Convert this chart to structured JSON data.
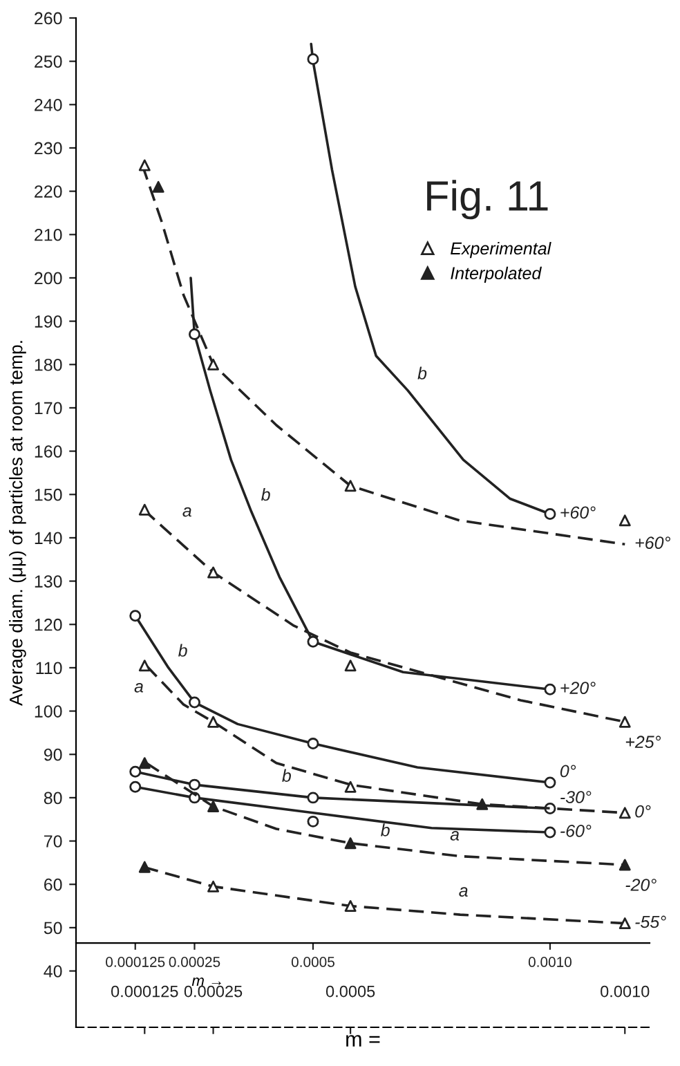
{
  "chart_data": {
    "type": "line",
    "title": "Fig. 11",
    "ylabel": "Average diam. (μμ) of particles at room temp.",
    "xlabel": "m →",
    "x2label": "m =",
    "xlim": [
      0,
      0.00121
    ],
    "xticks": [
      0.000125,
      0.00025,
      0.0005,
      {
        "value": 0.001,
        "label": "0.0010"
      }
    ],
    "x2lim": [
      0,
      0.001045
    ],
    "x2ticks": [
      0.000125,
      0.00025,
      0.0005,
      {
        "value": 0.001,
        "label": "0.0010"
      }
    ],
    "ylim": [
      27,
      260
    ],
    "yticks": [
      40,
      50,
      60,
      70,
      80,
      90,
      100,
      110,
      120,
      130,
      140,
      150,
      160,
      170,
      180,
      190,
      200,
      210,
      220,
      230,
      240,
      250,
      260
    ],
    "legend": "top right",
    "series": [
      {
        "name": "+60°",
        "line_style": "solid",
        "color": "#222222",
        "x": [
          0.000496,
          0.0005,
          0.00054,
          0.000589,
          0.000633,
          0.0007,
          0.000817,
          0.000916,
          0.001
        ],
        "values": [
          254,
          250,
          225,
          198,
          182,
          174,
          158,
          149,
          145.5
        ]
      },
      {
        "name": "+20°",
        "line_style": "solid",
        "color": "#222222",
        "x": [
          0.000242,
          0.00025,
          0.000283,
          0.000327,
          0.00037,
          0.000429,
          0.0005,
          0.00069,
          0.001
        ],
        "values": [
          200,
          187,
          174,
          158,
          146,
          131,
          116,
          109,
          105
        ]
      },
      {
        "name": "0°",
        "line_style": "solid",
        "color": "#222222",
        "x": [
          0.000125,
          0.000195,
          0.00025,
          0.000341,
          0.0005,
          0.00072,
          0.001
        ],
        "values": [
          122,
          110,
          102,
          97,
          92.5,
          87,
          83.5
        ]
      },
      {
        "name": "-30°",
        "line_style": "solid",
        "color": "#222222",
        "x": [
          0.000125,
          0.00025,
          0.0005,
          0.001
        ],
        "values": [
          86,
          83,
          80,
          77.5
        ]
      },
      {
        "name": "-60°",
        "line_style": "solid",
        "color": "#222222",
        "x": [
          0.000125,
          0.00025,
          0.0005,
          0.00075,
          0.001
        ],
        "values": [
          82.5,
          80,
          76.5,
          73,
          72
        ]
      },
      {
        "name": "+60°",
        "axis": "x2",
        "line_style": "dashed",
        "color": "#222222",
        "x": [
          0.000121,
          0.000156,
          0.000196,
          0.00025,
          0.000365,
          0.0005,
          0.000699,
          0.001
        ],
        "values": [
          226,
          213,
          196,
          180,
          166,
          152,
          144,
          138.5
        ]
      },
      {
        "name": "+25°",
        "axis": "x2",
        "line_style": "dashed",
        "color": "#222222",
        "x": [
          0.000123,
          0.00025,
          0.000397,
          0.0005,
          0.00081,
          0.001
        ],
        "values": [
          146.5,
          132,
          119.7,
          113.5,
          102.5,
          97.5
        ]
      },
      {
        "name": "0°",
        "axis": "x2",
        "line_style": "dashed",
        "color": "#222222",
        "x": [
          0.000128,
          0.000196,
          0.00025,
          0.000365,
          0.0005,
          0.00074,
          0.001
        ],
        "values": [
          110.5,
          101.5,
          97.5,
          88,
          83,
          78.5,
          76.5
        ]
      },
      {
        "name": "-20°",
        "axis": "x2",
        "line_style": "dashed",
        "color": "#222222",
        "x": [
          0.000128,
          0.00025,
          0.000365,
          0.0005,
          0.000699,
          0.001
        ],
        "values": [
          88,
          78,
          72.8,
          69.5,
          66.5,
          64.5
        ]
      },
      {
        "name": "-55°",
        "axis": "x2",
        "line_style": "dashed",
        "color": "#222222",
        "x": [
          0.000123,
          0.00025,
          0.0005,
          0.0007,
          0.001
        ],
        "values": [
          64,
          59.5,
          55,
          53,
          51
        ]
      },
      {
        "type": "scatter",
        "marker": "circle",
        "color": "#ffffff",
        "x": [
          0.0005,
          0.001,
          0.00025,
          0.0005,
          0.001,
          0.000125,
          0.00025,
          0.0005,
          0.001,
          0.000125,
          0.00025,
          0.0005,
          0.001,
          0.000125,
          0.00025,
          0.0005,
          0.001
        ],
        "values": [
          250.5,
          145.5,
          187,
          116,
          105,
          122,
          102,
          92.5,
          83.5,
          86,
          83,
          80,
          77.5,
          82.5,
          80,
          74.5,
          72
        ]
      },
      {
        "name": "Experimental",
        "type": "scatter",
        "axis": "x2",
        "marker": "triangle",
        "color": "#ffffff",
        "x": [
          0.000125,
          0.00025,
          0.0005,
          0.001,
          0.000125,
          0.00025,
          0.0005,
          0.001,
          0.000125,
          0.00025,
          0.0005,
          0.001,
          0.00025,
          0.0005,
          0.001
        ],
        "values": [
          226,
          180,
          152,
          144,
          146.5,
          132,
          110.5,
          97.5,
          110.5,
          97.5,
          82.5,
          76.5,
          59.5,
          55,
          51
        ]
      },
      {
        "name": "Interpolated",
        "type": "scatter",
        "axis": "x2",
        "marker": "triangle",
        "color": "#222222",
        "x": [
          0.00015,
          0.00074,
          0.000125,
          0.00025,
          0.0005,
          0.001,
          0.000125
        ],
        "values": [
          221,
          78.5,
          88,
          78,
          69.5,
          64.5,
          64
        ]
      }
    ],
    "annotations": [
      {
        "text": "b",
        "x": 0.0007,
        "y": 174
      },
      {
        "text": "b",
        "x": 0.00037,
        "y": 146
      },
      {
        "text": "b",
        "x": 0.000195,
        "y": 110
      },
      {
        "text": "b",
        "x": 0.000414,
        "y": 81.1
      },
      {
        "text": "b",
        "x": 0.000683,
        "y": 75.8
      },
      {
        "text": "a",
        "x": 0.000204,
        "y": 142.3
      },
      {
        "text": "a",
        "x": 0.000163,
        "y": 109
      },
      {
        "text": "a",
        "x": 0.000799,
        "y": 68
      },
      {
        "text": "a",
        "x": 0.000787,
        "y": 54.6
      }
    ]
  }
}
